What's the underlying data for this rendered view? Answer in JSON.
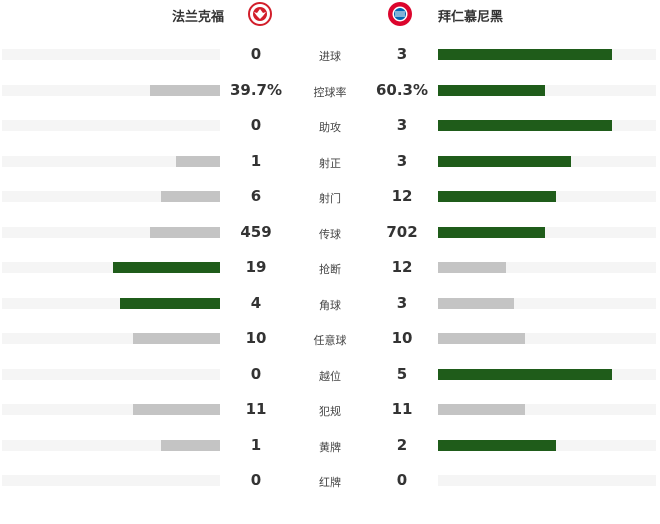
{
  "home": {
    "name": "法兰克福",
    "logo": "eintracht-frankfurt-logo"
  },
  "away": {
    "name": "拜仁慕尼黑",
    "logo": "bayern-munich-logo"
  },
  "colors": {
    "leader": "#1f5c1a",
    "other": "#c4c4c4",
    "track": "#f5f5f5"
  },
  "stats": [
    {
      "label": "进球",
      "home": "0",
      "away": "3",
      "home_fill": 0,
      "away_fill": 80,
      "leader": "away"
    },
    {
      "label": "控球率",
      "home": "39.7%",
      "away": "60.3%",
      "home_fill": 32,
      "away_fill": 49,
      "leader": "away"
    },
    {
      "label": "助攻",
      "home": "0",
      "away": "3",
      "home_fill": 0,
      "away_fill": 80,
      "leader": "away"
    },
    {
      "label": "射正",
      "home": "1",
      "away": "3",
      "home_fill": 20,
      "away_fill": 61,
      "leader": "away"
    },
    {
      "label": "射门",
      "home": "6",
      "away": "12",
      "home_fill": 27,
      "away_fill": 54,
      "leader": "away"
    },
    {
      "label": "传球",
      "home": "459",
      "away": "702",
      "home_fill": 32,
      "away_fill": 49,
      "leader": "away"
    },
    {
      "label": "抢断",
      "home": "19",
      "away": "12",
      "home_fill": 49,
      "away_fill": 31,
      "leader": "home"
    },
    {
      "label": "角球",
      "home": "4",
      "away": "3",
      "home_fill": 46,
      "away_fill": 35,
      "leader": "home"
    },
    {
      "label": "任意球",
      "home": "10",
      "away": "10",
      "home_fill": 40,
      "away_fill": 40,
      "leader": "none"
    },
    {
      "label": "越位",
      "home": "0",
      "away": "5",
      "home_fill": 0,
      "away_fill": 80,
      "leader": "away"
    },
    {
      "label": "犯规",
      "home": "11",
      "away": "11",
      "home_fill": 40,
      "away_fill": 40,
      "leader": "none"
    },
    {
      "label": "黄牌",
      "home": "1",
      "away": "2",
      "home_fill": 27,
      "away_fill": 54,
      "leader": "away"
    },
    {
      "label": "红牌",
      "home": "0",
      "away": "0",
      "home_fill": 0,
      "away_fill": 0,
      "leader": "none"
    }
  ]
}
